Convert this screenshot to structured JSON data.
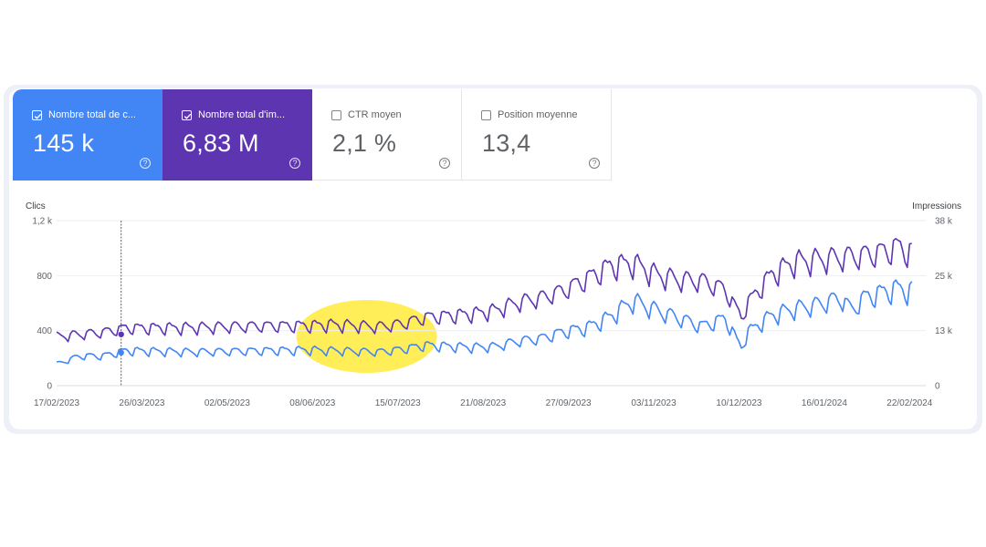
{
  "metrics": [
    {
      "label": "Nombre total de c...",
      "value": "145 k",
      "checked": true,
      "color": "#4285f4"
    },
    {
      "label": "Nombre total d'im...",
      "value": "6,83 M",
      "checked": true,
      "color": "#5e35b1"
    },
    {
      "label": "CTR moyen",
      "value": "2,1 %",
      "checked": false
    },
    {
      "label": "Position moyenne",
      "value": "13,4",
      "checked": false
    }
  ],
  "help_icon": "question-circle-icon",
  "chart_data": {
    "type": "line",
    "left_axis": {
      "title": "Clics",
      "ticks": [
        "0",
        "400",
        "800",
        "1,2 k"
      ],
      "range": [
        0,
        1200
      ]
    },
    "right_axis": {
      "title": "Impressions",
      "ticks": [
        "0",
        "13 k",
        "25 k",
        "38 k"
      ],
      "range": [
        0,
        38000
      ]
    },
    "x_tick_labels": [
      "17/02/2023",
      "26/03/2023",
      "02/05/2023",
      "08/06/2023",
      "15/07/2023",
      "21/08/2023",
      "27/09/2023",
      "03/11/2023",
      "10/12/2023",
      "16/01/2024",
      "22/02/2024"
    ],
    "x_range": [
      "17/02/2023",
      "29/02/2024"
    ],
    "series": [
      {
        "name": "Clics",
        "axis": "left",
        "color": "#4285f4",
        "anchors": [
          [
            0,
            160
          ],
          [
            10,
            220
          ],
          [
            20,
            220
          ],
          [
            30,
            260
          ],
          [
            60,
            250
          ],
          [
            90,
            260
          ],
          [
            110,
            265
          ],
          [
            120,
            260
          ],
          [
            140,
            250
          ],
          [
            150,
            270
          ],
          [
            160,
            300
          ],
          [
            180,
            285
          ],
          [
            190,
            290
          ],
          [
            200,
            330
          ],
          [
            210,
            350
          ],
          [
            220,
            400
          ],
          [
            230,
            430
          ],
          [
            240,
            510
          ],
          [
            250,
            630
          ],
          [
            260,
            560
          ],
          [
            270,
            500
          ],
          [
            280,
            440
          ],
          [
            290,
            500
          ],
          [
            297,
            280
          ],
          [
            300,
            400
          ],
          [
            310,
            520
          ],
          [
            320,
            570
          ],
          [
            330,
            600
          ],
          [
            340,
            650
          ],
          [
            345,
            560
          ],
          [
            350,
            650
          ],
          [
            360,
            700
          ],
          [
            365,
            720
          ],
          [
            371,
            700
          ]
        ]
      },
      {
        "name": "Impressions",
        "axis": "right",
        "color": "#5e35b1",
        "anchors": [
          [
            0,
            11500
          ],
          [
            10,
            12000
          ],
          [
            20,
            12500
          ],
          [
            30,
            13500
          ],
          [
            60,
            13600
          ],
          [
            90,
            14000
          ],
          [
            110,
            14100
          ],
          [
            120,
            14300
          ],
          [
            140,
            13800
          ],
          [
            150,
            14500
          ],
          [
            160,
            16000
          ],
          [
            180,
            16800
          ],
          [
            190,
            17600
          ],
          [
            200,
            19500
          ],
          [
            210,
            20500
          ],
          [
            220,
            22300
          ],
          [
            230,
            25000
          ],
          [
            240,
            28000
          ],
          [
            250,
            28700
          ],
          [
            260,
            26000
          ],
          [
            270,
            24800
          ],
          [
            280,
            24500
          ],
          [
            290,
            22500
          ],
          [
            297,
            16000
          ],
          [
            300,
            19500
          ],
          [
            310,
            26000
          ],
          [
            320,
            29000
          ],
          [
            330,
            29500
          ],
          [
            340,
            30000
          ],
          [
            350,
            30500
          ],
          [
            360,
            31500
          ],
          [
            365,
            32500
          ],
          [
            371,
            31000
          ]
        ]
      }
    ],
    "annotations": [
      {
        "type": "highlight",
        "color": "#ffeb3b",
        "x_from": "01/06/2023",
        "x_to": "01/08/2023"
      },
      {
        "type": "cursor",
        "x": "17/03/2023",
        "values": {
          "Clics": 240,
          "Impressions": 11800
        }
      }
    ],
    "grid": true
  }
}
